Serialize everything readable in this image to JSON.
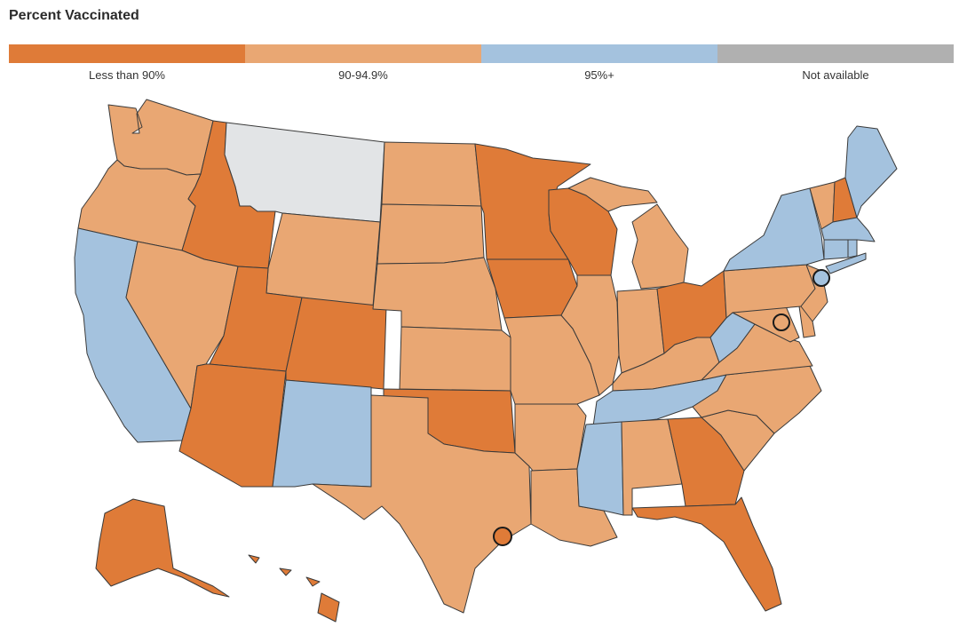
{
  "title": "Percent Vaccinated",
  "legend": [
    {
      "label": "Less than 90%",
      "color": "#df7b38"
    },
    {
      "label": "90-94.9%",
      "color": "#e9a773"
    },
    {
      "label": "95%+",
      "color": "#a4c2de"
    },
    {
      "label": "Not available",
      "color": "#b0b0b0"
    }
  ],
  "na_fill": "#e2e4e6",
  "states": {
    "WA": "90-94.9%",
    "OR": "90-94.9%",
    "CA": "95%+",
    "ID": "Less than 90%",
    "NV": "90-94.9%",
    "MT": "Not available",
    "WY": "90-94.9%",
    "UT": "Less than 90%",
    "AZ": "Less than 90%",
    "CO": "Less than 90%",
    "NM": "95%+",
    "ND": "90-94.9%",
    "SD": "90-94.9%",
    "NE": "90-94.9%",
    "KS": "90-94.9%",
    "OK": "Less than 90%",
    "TX": "90-94.9%",
    "MN": "Less than 90%",
    "IA": "Less than 90%",
    "MO": "90-94.9%",
    "AR": "90-94.9%",
    "LA": "90-94.9%",
    "WI": "Less than 90%",
    "IL": "90-94.9%",
    "MI": "90-94.9%",
    "IN": "90-94.9%",
    "OH": "Less than 90%",
    "KY": "90-94.9%",
    "TN": "95%+",
    "MS": "95%+",
    "AL": "90-94.9%",
    "GA": "Less than 90%",
    "FL": "Less than 90%",
    "SC": "90-94.9%",
    "NC": "90-94.9%",
    "VA": "90-94.9%",
    "WV": "95%+",
    "MD": "90-94.9%",
    "DE": "90-94.9%",
    "PA": "90-94.9%",
    "NJ": "90-94.9%",
    "NY": "95%+",
    "CT": "95%+",
    "RI": "95%+",
    "MA": "95%+",
    "VT": "90-94.9%",
    "NH": "Less than 90%",
    "ME": "95%+",
    "AK": "Less than 90%",
    "HI": "Less than 90%"
  },
  "cities": {
    "NYC": "95%+",
    "DC": "90-94.9%",
    "Houston": "Less than 90%"
  }
}
